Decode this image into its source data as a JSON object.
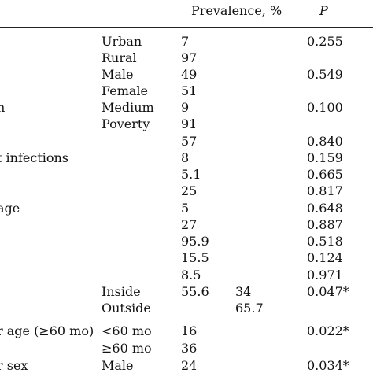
{
  "header": {
    "prevalence": "Prevalence, %",
    "p": "P"
  },
  "rows": [
    {
      "label": "",
      "category": "Urban",
      "prevalence": "7",
      "prevalence2": "",
      "p": "0.255"
    },
    {
      "label": "",
      "category": "Rural",
      "prevalence": "97",
      "prevalence2": "",
      "p": ""
    },
    {
      "label": "",
      "category": "Male",
      "prevalence": "49",
      "prevalence2": "",
      "p": "0.549"
    },
    {
      "label": "",
      "category": "Female",
      "prevalence": "51",
      "prevalence2": "",
      "p": ""
    },
    {
      "label": "n",
      "category": "Medium",
      "prevalence": "9",
      "prevalence2": "",
      "p": "0.100"
    },
    {
      "label": "",
      "category": "Poverty",
      "prevalence": "91",
      "prevalence2": "",
      "p": ""
    },
    {
      "label": "",
      "category": "",
      "prevalence": "57",
      "prevalence2": "",
      "p": "0.840"
    },
    {
      "label": "t infections",
      "category": "",
      "prevalence": "8",
      "prevalence2": "",
      "p": "0.159"
    },
    {
      "label": "",
      "category": "",
      "prevalence": "5.1",
      "prevalence2": "",
      "p": "0.665"
    },
    {
      "label": "",
      "category": "",
      "prevalence": "25",
      "prevalence2": "",
      "p": "0.817"
    },
    {
      "label": "age",
      "category": "",
      "prevalence": "5",
      "prevalence2": "",
      "p": "0.648"
    },
    {
      "label": "",
      "category": "",
      "prevalence": "27",
      "prevalence2": "",
      "p": "0.887"
    },
    {
      "label": "",
      "category": "",
      "prevalence": "95.9",
      "prevalence2": "",
      "p": "0.518"
    },
    {
      "label": "",
      "category": "",
      "prevalence": "15.5",
      "prevalence2": "",
      "p": "0.124"
    },
    {
      "label": "",
      "category": "",
      "prevalence": "8.5",
      "prevalence2": "",
      "p": "0.971"
    },
    {
      "label": "",
      "category": "Inside",
      "prevalence": "55.6",
      "prevalence2": "34",
      "p": "0.047*"
    },
    {
      "label": "",
      "category": "Outside",
      "prevalence": "",
      "prevalence2": "65.7",
      "p": ""
    },
    {
      "label": "r age (≥60 mo)",
      "category": "<60 mo",
      "prevalence": "16",
      "prevalence2": "",
      "p": "0.022*"
    },
    {
      "label": "",
      "category": "≥60 mo",
      "prevalence": "36",
      "prevalence2": "",
      "p": ""
    },
    {
      "label": "r sex",
      "category": "Male",
      "prevalence": "24",
      "prevalence2": "",
      "p": "0.034*"
    }
  ]
}
